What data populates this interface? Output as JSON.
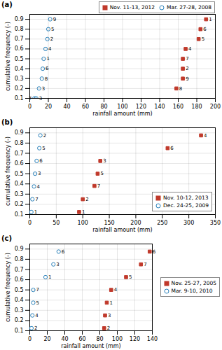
{
  "chart_data": [
    {
      "type": "scatter",
      "title": "(a)",
      "x_label": "rainfall amount (mm)",
      "y_label": "cumulative frequency (-)",
      "xlim": [
        0,
        200
      ],
      "xticks": [
        0,
        20,
        40,
        60,
        80,
        100,
        120,
        140,
        160,
        180,
        200
      ],
      "ylim": [
        0.1,
        0.95
      ],
      "yticks": [
        0.1,
        0.2,
        0.3,
        0.4,
        0.5,
        0.6,
        0.7,
        0.8,
        0.9
      ],
      "grid": true,
      "legend": "upper right",
      "series": [
        {
          "name": "Nov. 11-13, 2012",
          "color": "#c0392b",
          "marker": "square",
          "x": [
            158,
            165,
            165,
            165,
            168,
            182,
            184,
            190
          ],
          "values": [
            0.2,
            0.3,
            0.4,
            0.5,
            0.6,
            0.7,
            0.8,
            0.9
          ],
          "labels": [
            "8",
            "9",
            "2",
            "7",
            "4",
            "5",
            "6",
            "1"
          ]
        },
        {
          "name": "Mar. 27-28, 2008",
          "color": "#2980b9",
          "marker": "circle",
          "x": [
            5,
            7,
            10,
            13,
            14,
            15,
            17,
            19,
            20,
            22
          ],
          "values": [
            0.1,
            0.1,
            0.2,
            0.3,
            0.4,
            0.5,
            0.6,
            0.7,
            0.8,
            0.9
          ],
          "labels": [
            "7",
            "3",
            "3",
            "8",
            "6",
            "1",
            "4",
            "2",
            "5",
            "9"
          ]
        }
      ]
    },
    {
      "type": "scatter",
      "title": "(b)",
      "x_label": "rainfall amount (mm)",
      "y_label": "cumulative frequency (-)",
      "xlim": [
        0,
        350
      ],
      "xticks": [
        0,
        50,
        100,
        150,
        200,
        250,
        300,
        350
      ],
      "ylim": [
        0.1,
        0.95
      ],
      "yticks": [
        0.1,
        0.2,
        0.3,
        0.4,
        0.5,
        0.6,
        0.7,
        0.8,
        0.9
      ],
      "grid": true,
      "legend": "lower right",
      "series": [
        {
          "name": "Nov. 10-12, 2013",
          "color": "#c0392b",
          "marker": "square",
          "x": [
            93,
            100,
            122,
            128,
            133,
            260,
            323
          ],
          "values": [
            0.125,
            0.25,
            0.38,
            0.5,
            0.625,
            0.75,
            0.875
          ],
          "labels": [
            "1",
            "2",
            "7",
            "5",
            "3",
            "6",
            "4"
          ]
        },
        {
          "name": "Dec. 24-25, 2009",
          "color": "#2980b9",
          "marker": "circle",
          "x": [
            3,
            5,
            8,
            10,
            13,
            18,
            20
          ],
          "values": [
            0.125,
            0.25,
            0.375,
            0.5,
            0.625,
            0.75,
            0.875
          ],
          "labels": [
            "1",
            "7",
            "4",
            "3",
            "6",
            "5",
            "2"
          ]
        }
      ]
    },
    {
      "type": "scatter",
      "title": "(c)",
      "x_label": "rainfall amount (mm)",
      "y_label": "cumulative frequency (-)",
      "xlim": [
        0,
        140
      ],
      "xticks": [
        0,
        20,
        40,
        60,
        80,
        100,
        120,
        140
      ],
      "ylim": [
        0.1,
        0.95
      ],
      "yticks": [
        0.1,
        0.2,
        0.3,
        0.4,
        0.5,
        0.6,
        0.7,
        0.8,
        0.9
      ],
      "grid": true,
      "legend": "center right",
      "series": [
        {
          "name": "Nov. 25-27, 2005",
          "color": "#c0392b",
          "marker": "square",
          "x": [
            85,
            86,
            88,
            93,
            110,
            127,
            137
          ],
          "values": [
            0.125,
            0.25,
            0.375,
            0.5,
            0.625,
            0.75,
            0.875
          ],
          "labels": [
            "2",
            "3",
            "1",
            "4",
            "5",
            "7",
            "6"
          ]
        },
        {
          "name": "Mar. 9-10, 2010",
          "color": "#2980b9",
          "marker": "circle",
          "x": [
            2,
            3,
            4,
            4,
            18,
            27,
            33
          ],
          "values": [
            0.125,
            0.25,
            0.375,
            0.5,
            0.625,
            0.75,
            0.875
          ],
          "labels": [
            "2",
            "4",
            "5",
            "7",
            "1",
            "3",
            "6"
          ]
        }
      ]
    }
  ]
}
